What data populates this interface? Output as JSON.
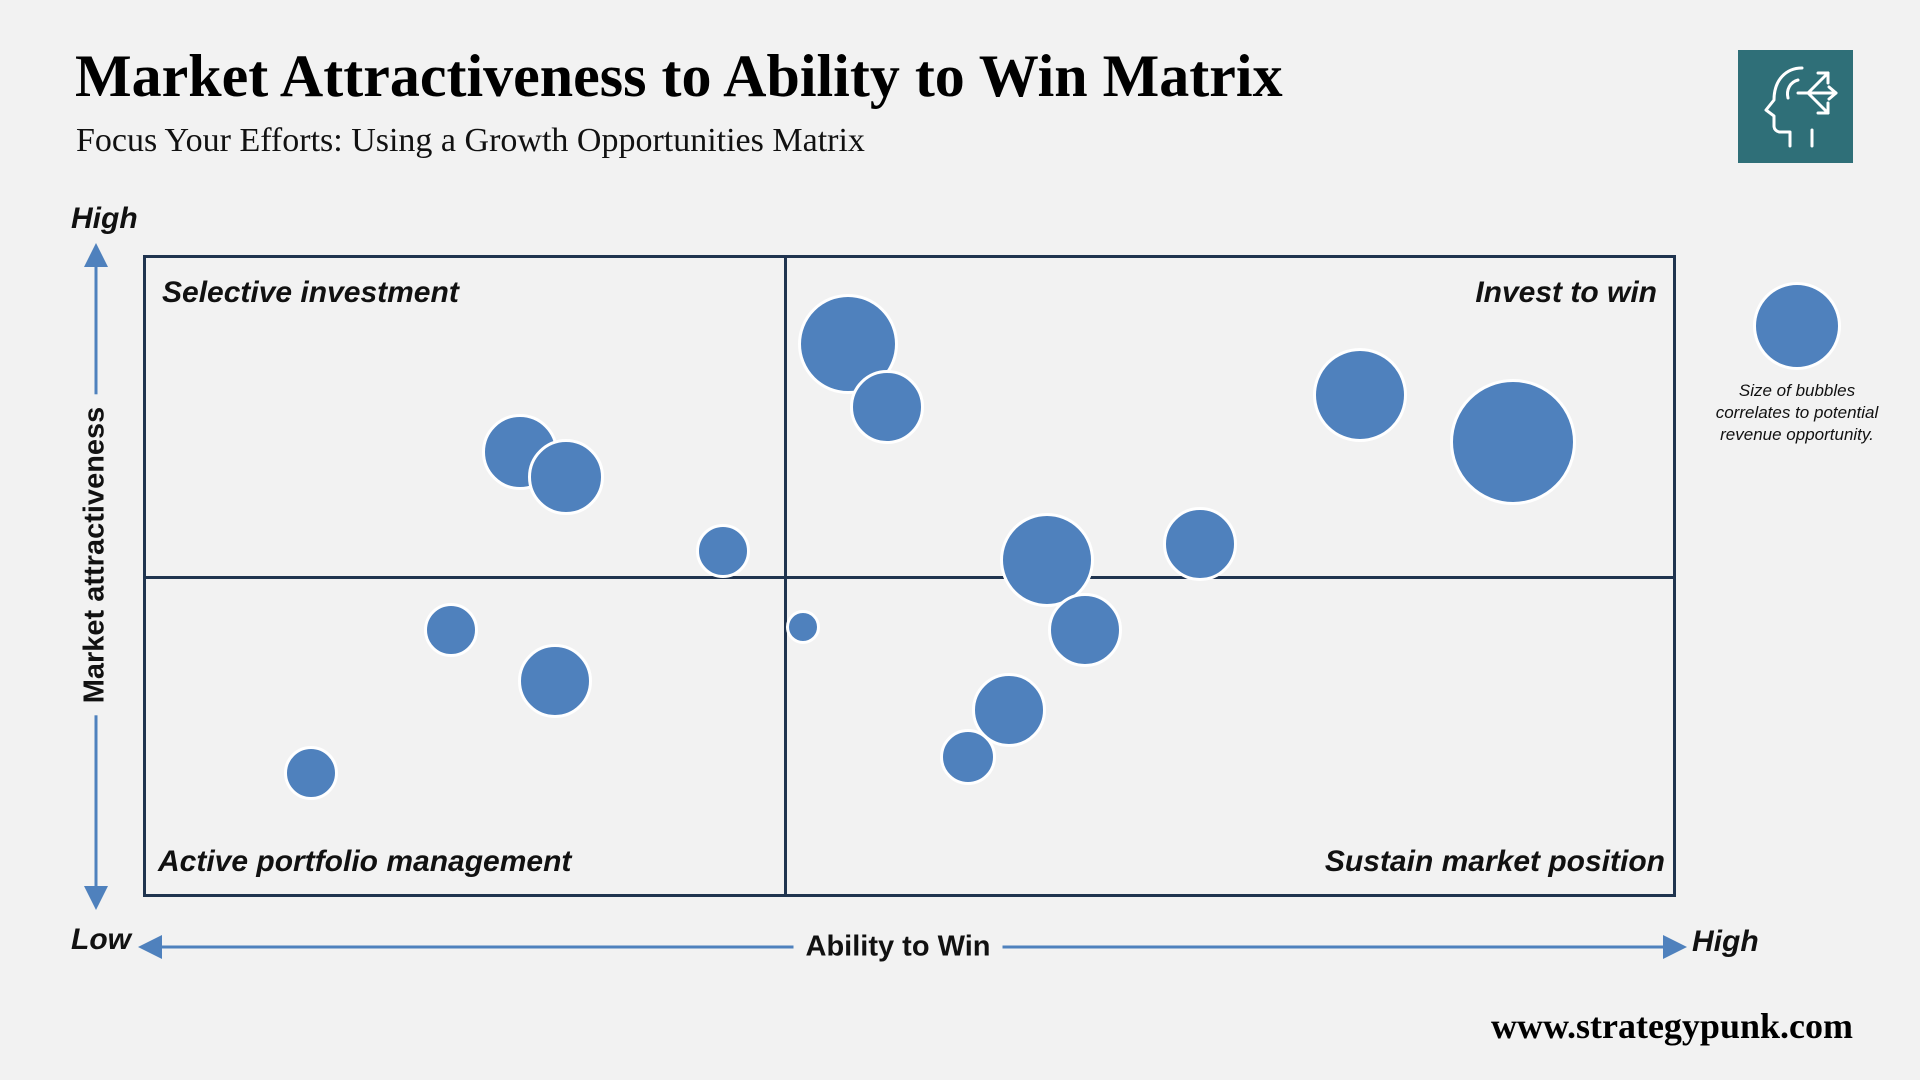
{
  "title": "Market Attractiveness to Ability to Win Matrix",
  "subtitle": "Focus Your Efforts: Using a Growth Opportunities Matrix",
  "logo_icon": "head-with-arrows-icon",
  "colors": {
    "background": "#f2f2f2",
    "bubble": "#4f81bd",
    "matrix_border": "#20344f",
    "axis_arrow": "#4f81bd",
    "logo": "#2f6f78"
  },
  "axes": {
    "y_label": "Market attractiveness",
    "y_high": "High",
    "x_label": "Ability to Win",
    "x_low": "Low",
    "x_high": "High"
  },
  "quadrants": {
    "top_left": "Selective investment",
    "top_right": "Invest to win",
    "bottom_left": "Active portfolio management",
    "bottom_right": "Sustain market position"
  },
  "legend": {
    "text": "Size of bubbles correlates to potential revenue opportunity."
  },
  "footer": "www.strategypunk.com",
  "chart_data": {
    "type": "scatter",
    "xlim": [
      0,
      100
    ],
    "ylim": [
      0,
      100
    ],
    "bubbles": [
      {
        "x": 24.5,
        "y": 69.5,
        "size": 38
      },
      {
        "x": 27.5,
        "y": 65.5,
        "size": 38
      },
      {
        "x": 37.8,
        "y": 54.0,
        "size": 27
      },
      {
        "x": 20.0,
        "y": 41.5,
        "size": 27
      },
      {
        "x": 26.8,
        "y": 33.5,
        "size": 37
      },
      {
        "x": 10.8,
        "y": 19.0,
        "size": 27
      },
      {
        "x": 46.0,
        "y": 86.5,
        "size": 50
      },
      {
        "x": 48.5,
        "y": 76.5,
        "size": 37
      },
      {
        "x": 59.0,
        "y": 52.5,
        "size": 47
      },
      {
        "x": 69.0,
        "y": 55.0,
        "size": 37
      },
      {
        "x": 43.0,
        "y": 42.0,
        "size": 17
      },
      {
        "x": 61.5,
        "y": 41.5,
        "size": 37
      },
      {
        "x": 56.5,
        "y": 29.0,
        "size": 37
      },
      {
        "x": 53.8,
        "y": 21.5,
        "size": 28
      },
      {
        "x": 79.5,
        "y": 78.5,
        "size": 47
      },
      {
        "x": 89.5,
        "y": 71.0,
        "size": 63
      }
    ]
  }
}
